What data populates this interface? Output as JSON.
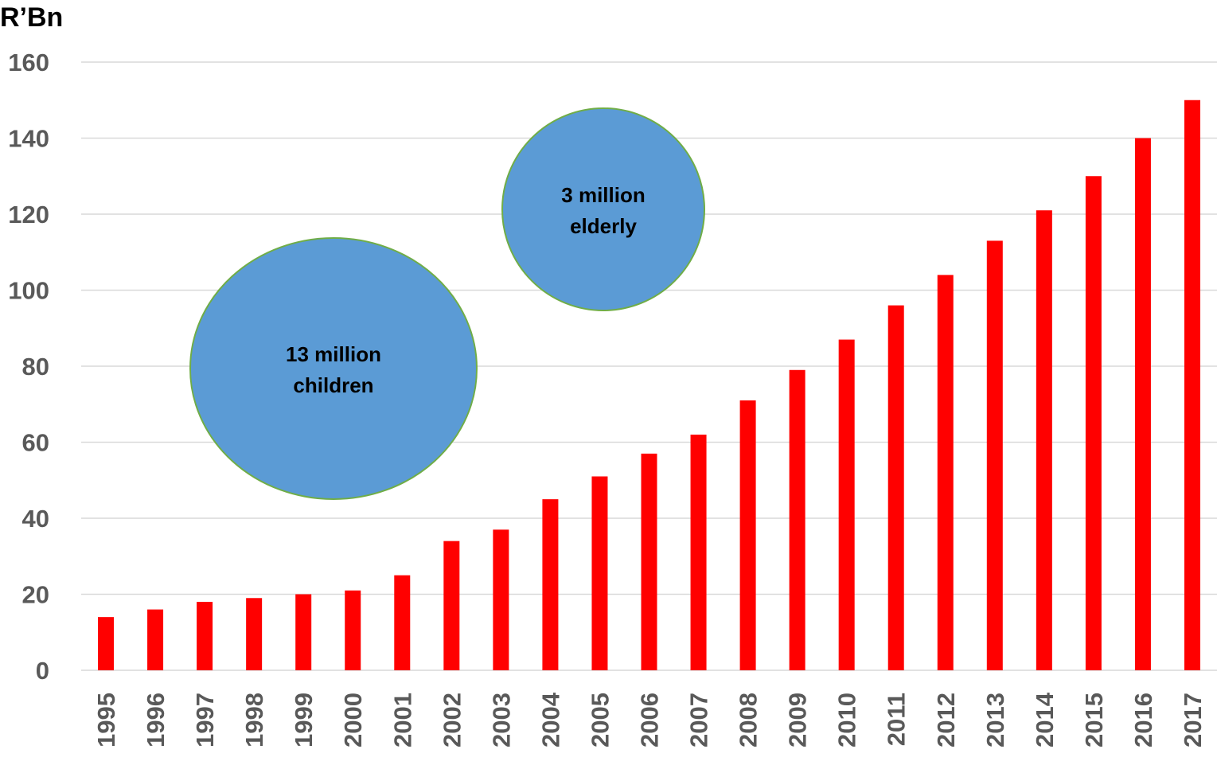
{
  "chart_data": {
    "type": "bar",
    "ylabel": "R’Bn",
    "xlabel": "",
    "ylim": [
      0,
      160
    ],
    "yticks": [
      0,
      20,
      40,
      60,
      80,
      100,
      120,
      140,
      160
    ],
    "grid": true,
    "categories": [
      "1995",
      "1996",
      "1997",
      "1998",
      "1999",
      "2000",
      "2001",
      "2002",
      "2003",
      "2004",
      "2005",
      "2006",
      "2007",
      "2008",
      "2009",
      "2010",
      "2011",
      "2012",
      "2013",
      "2014",
      "2015",
      "2016",
      "2017"
    ],
    "values": [
      14,
      16,
      18,
      19,
      20,
      21,
      25,
      34,
      37,
      45,
      51,
      57,
      62,
      71,
      79,
      87,
      96,
      104,
      113,
      121,
      130,
      140,
      150
    ],
    "bar_color": "#ff0000",
    "annotations": [
      {
        "id": "children",
        "lines": [
          "13 million",
          "children"
        ],
        "color": "#5b9bd5",
        "border": "#70ad47"
      },
      {
        "id": "elderly",
        "lines": [
          "3 million",
          "elderly"
        ],
        "color": "#5b9bd5",
        "border": "#70ad47"
      }
    ]
  }
}
